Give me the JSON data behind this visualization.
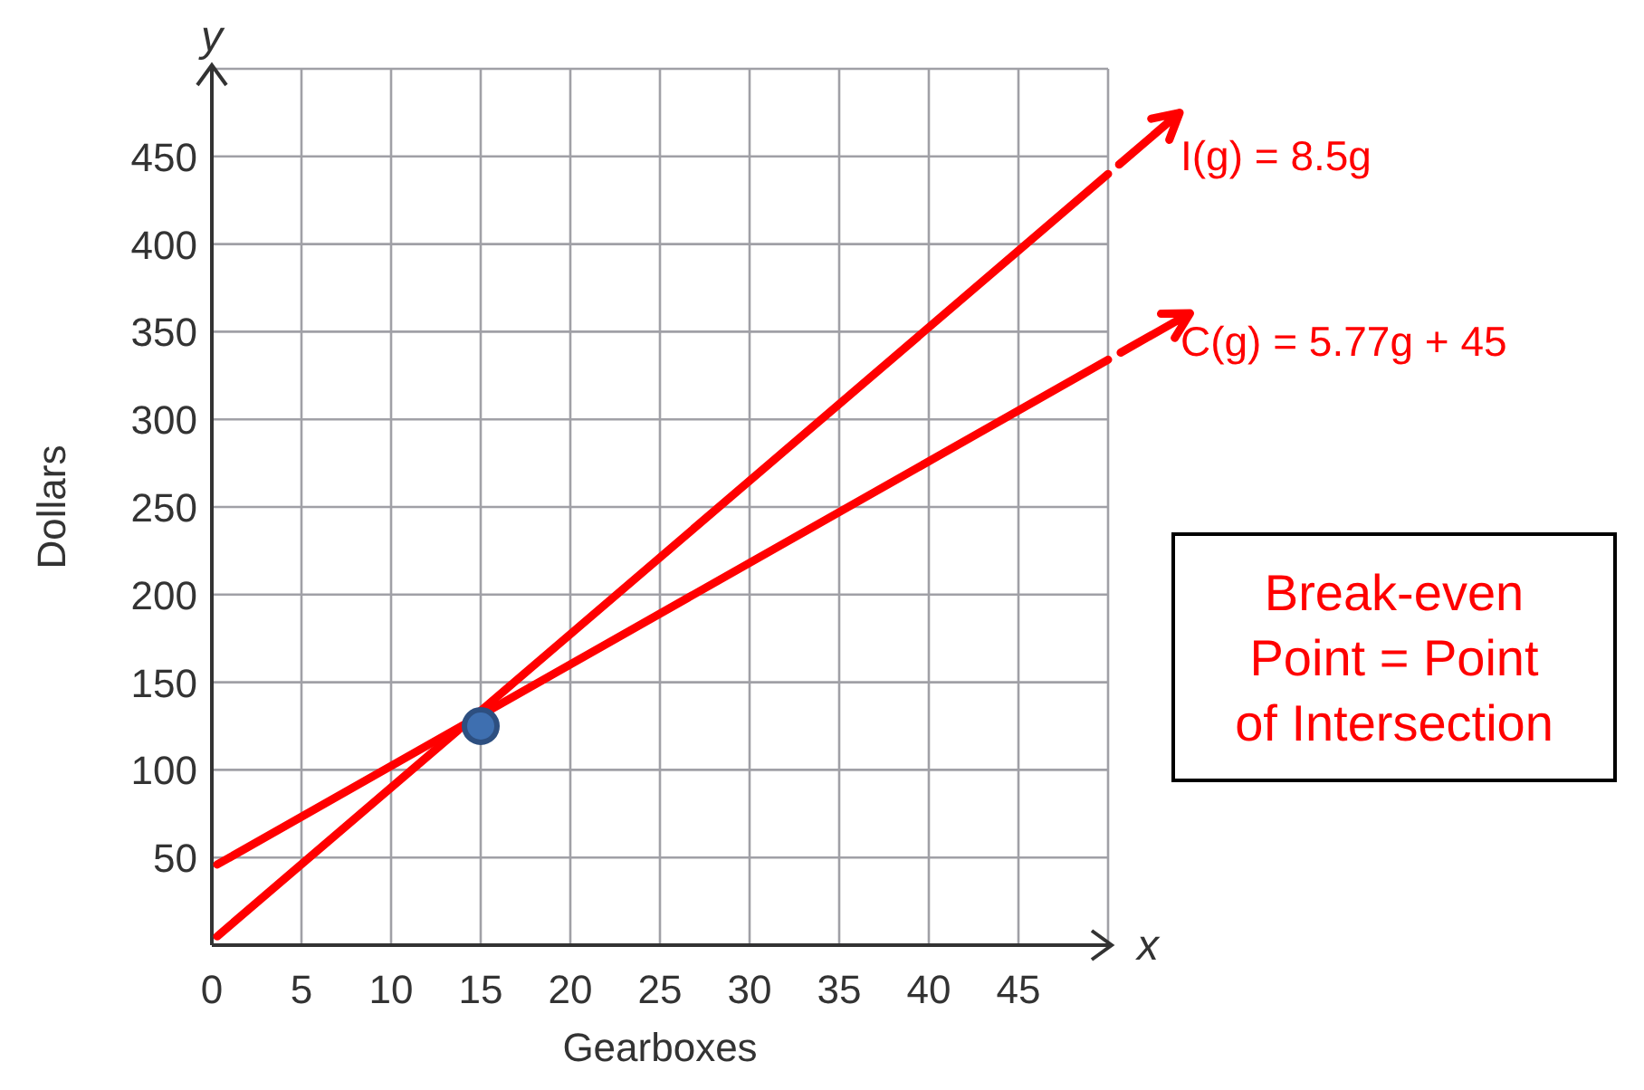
{
  "chart_data": {
    "type": "line",
    "xlabel": "Gearboxes",
    "ylabel": "Dollars",
    "xlim": [
      0,
      50
    ],
    "ylim": [
      0,
      500
    ],
    "xticks": [
      0,
      5,
      10,
      15,
      20,
      25,
      30,
      35,
      40,
      45
    ],
    "yticks": [
      50,
      100,
      150,
      200,
      250,
      300,
      350,
      400,
      450
    ],
    "grid": true,
    "line_style": "solid",
    "series": [
      {
        "color": "#ff0000",
        "x": [
          0.3,
          50
        ],
        "values": [
          5,
          440
        ]
      },
      {
        "color": "#ff0000",
        "x": [
          0.3,
          50
        ],
        "values": [
          46,
          334
        ]
      },
      {
        "type": "scatter",
        "color": "#3e6fb0",
        "x": [
          15
        ],
        "values": [
          125
        ]
      }
    ],
    "annotations": [
      {
        "text": "I(g) = 8.5g",
        "x": 50,
        "y": 440
      },
      {
        "text": "C(g) = 5.77g + 45",
        "x": 50,
        "y": 334
      },
      "y",
      "x",
      "Break-even Point = Point of Intersection"
    ]
  }
}
